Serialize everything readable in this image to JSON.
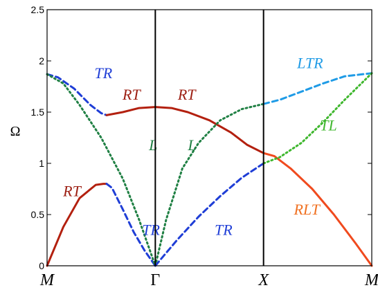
{
  "chart_data": {
    "type": "line",
    "ylabel": "Ω",
    "ylim": [
      0,
      2.5
    ],
    "y_ticks": [
      "0",
      "0.5",
      "1",
      "1.5",
      "2",
      "2.5"
    ],
    "x_ticks": [
      "M",
      "Γ",
      "X",
      "M"
    ],
    "x_tick_positions": [
      0,
      1,
      2,
      3
    ],
    "xlim": [
      0,
      3
    ],
    "vertical_lines_at": [
      1,
      2
    ],
    "grid": false,
    "series": [
      {
        "name": "RT",
        "style": "solid",
        "color": "#b3200f",
        "points": [
          [
            0,
            0
          ],
          [
            0.15,
            0.38
          ],
          [
            0.3,
            0.66
          ],
          [
            0.45,
            0.79
          ],
          [
            0.52,
            0.8
          ],
          [
            0.55,
            0.8
          ]
        ]
      },
      {
        "name": "TR",
        "style": "dashed",
        "color": "#1f3ed6",
        "points": [
          [
            0.55,
            0.8
          ],
          [
            0.6,
            0.76
          ],
          [
            0.7,
            0.55
          ],
          [
            0.8,
            0.33
          ],
          [
            0.9,
            0.15
          ],
          [
            1.0,
            0.0
          ]
        ]
      },
      {
        "name": "TR",
        "style": "dashed",
        "color": "#1f3ed6",
        "points": [
          [
            0,
            1.87
          ],
          [
            0.1,
            1.84
          ],
          [
            0.25,
            1.73
          ],
          [
            0.4,
            1.57
          ],
          [
            0.5,
            1.49
          ],
          [
            0.55,
            1.47
          ]
        ]
      },
      {
        "name": "L",
        "style": "dotted",
        "color": "#208044",
        "points": [
          [
            0,
            1.87
          ],
          [
            0.15,
            1.78
          ],
          [
            0.3,
            1.57
          ],
          [
            0.5,
            1.25
          ],
          [
            0.7,
            0.85
          ],
          [
            0.85,
            0.45
          ],
          [
            1.0,
            0.0
          ]
        ]
      },
      {
        "name": "RT",
        "style": "solid",
        "color": "#b3200f",
        "points": [
          [
            0.55,
            1.47
          ],
          [
            0.7,
            1.5
          ],
          [
            0.85,
            1.54
          ],
          [
            1.0,
            1.55
          ],
          [
            1.15,
            1.54
          ],
          [
            1.3,
            1.5
          ],
          [
            1.5,
            1.42
          ],
          [
            1.7,
            1.3
          ],
          [
            1.85,
            1.18
          ],
          [
            2.0,
            1.1
          ]
        ]
      },
      {
        "name": "L",
        "style": "dotted",
        "color": "#208044",
        "points": [
          [
            1.0,
            0.0
          ],
          [
            1.1,
            0.45
          ],
          [
            1.25,
            0.95
          ],
          [
            1.4,
            1.2
          ],
          [
            1.6,
            1.42
          ],
          [
            1.8,
            1.53
          ],
          [
            2.0,
            1.58
          ]
        ]
      },
      {
        "name": "TR",
        "style": "dashed",
        "color": "#1f3ed6",
        "points": [
          [
            1.0,
            0.0
          ],
          [
            1.2,
            0.25
          ],
          [
            1.4,
            0.48
          ],
          [
            1.6,
            0.68
          ],
          [
            1.8,
            0.86
          ],
          [
            2.0,
            1.0
          ]
        ]
      },
      {
        "name": "RLT",
        "style": "solid",
        "color": "#f04a1e",
        "points": [
          [
            2.0,
            1.1
          ],
          [
            2.1,
            1.07
          ],
          [
            2.25,
            0.95
          ],
          [
            2.45,
            0.75
          ],
          [
            2.65,
            0.5
          ],
          [
            2.85,
            0.22
          ],
          [
            3.0,
            0.0
          ]
        ]
      },
      {
        "name": "LTR",
        "style": "dashed",
        "color": "#1f9be6",
        "points": [
          [
            2.0,
            1.58
          ],
          [
            2.15,
            1.62
          ],
          [
            2.35,
            1.7
          ],
          [
            2.55,
            1.78
          ],
          [
            2.75,
            1.85
          ],
          [
            3.0,
            1.88
          ]
        ]
      },
      {
        "name": "TL",
        "style": "dotted",
        "color": "#3fb72e",
        "points": [
          [
            2.0,
            1.0
          ],
          [
            2.15,
            1.06
          ],
          [
            2.35,
            1.2
          ],
          [
            2.55,
            1.4
          ],
          [
            2.75,
            1.62
          ],
          [
            3.0,
            1.88
          ]
        ]
      }
    ],
    "annotations": [
      {
        "text": "TR",
        "x": 0.52,
        "y": 1.83,
        "color": "#1f3ed6"
      },
      {
        "text": "RT",
        "x": 0.78,
        "y": 1.62,
        "color": "#9c1e12"
      },
      {
        "text": "RT",
        "x": 1.29,
        "y": 1.62,
        "color": "#9c1e12"
      },
      {
        "text": "LTR",
        "x": 2.43,
        "y": 1.93,
        "color": "#1f9be6"
      },
      {
        "text": "L",
        "x": 0.98,
        "y": 1.13,
        "color": "#208044"
      },
      {
        "text": "L",
        "x": 1.34,
        "y": 1.13,
        "color": "#208044"
      },
      {
        "text": "TL",
        "x": 2.6,
        "y": 1.32,
        "color": "#3fb72e"
      },
      {
        "text": "RT",
        "x": 0.23,
        "y": 0.68,
        "color": "#9c1e12"
      },
      {
        "text": "TR",
        "x": 0.96,
        "y": 0.3,
        "color": "#1f3ed6"
      },
      {
        "text": "TR",
        "x": 1.63,
        "y": 0.3,
        "color": "#1f3ed6"
      },
      {
        "text": "RLT",
        "x": 2.4,
        "y": 0.5,
        "color": "#f07020"
      }
    ]
  }
}
